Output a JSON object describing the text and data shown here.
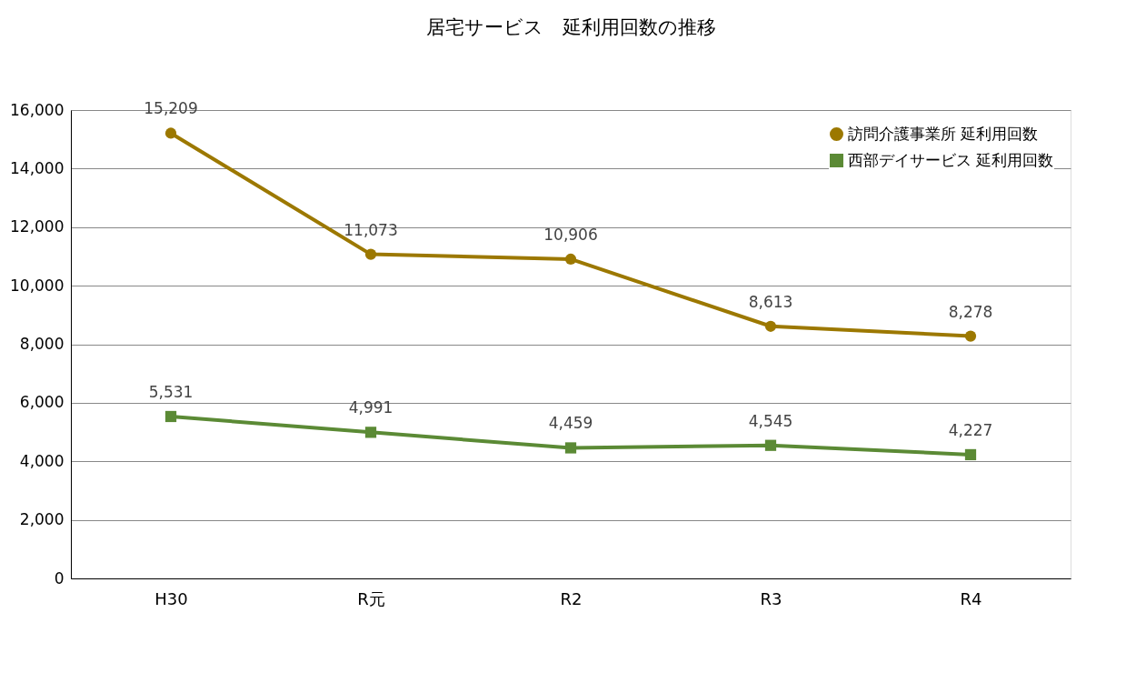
{
  "chart_data": {
    "type": "line",
    "title": "居宅サービス　延利用回数の推移",
    "categories": [
      "H30",
      "R元",
      "R2",
      "R3",
      "R4"
    ],
    "series": [
      {
        "name": "訪問介護事業所 延利用回数",
        "color": "#9c7800",
        "marker": "circle",
        "values": [
          15209,
          11073,
          10906,
          8613,
          8278
        ],
        "value_labels": [
          "15,209",
          "11,073",
          "10,906",
          "8,613",
          "8,278"
        ]
      },
      {
        "name": "西部デイサービス 延利用回数",
        "color": "#5b8a35",
        "marker": "square",
        "values": [
          5531,
          4991,
          4459,
          4545,
          4227
        ],
        "value_labels": [
          "5,531",
          "4,991",
          "4,459",
          "4,545",
          "4,227"
        ]
      }
    ],
    "ylim": [
      0,
      16000
    ],
    "yticks": [
      0,
      {
        "value": 2000,
        "label": "2,000"
      },
      {
        "value": 4000,
        "label": "4,000"
      },
      {
        "value": 6000,
        "label": "6,000"
      },
      {
        "value": 8000,
        "label": "8,000"
      },
      {
        "value": 10000,
        "label": "10,000"
      },
      {
        "value": 12000,
        "label": "12,000"
      },
      {
        "value": 14000,
        "label": "14,000"
      },
      {
        "value": 16000,
        "label": "16,000"
      }
    ],
    "grid": "y",
    "legend": "top right",
    "line_style": "solid"
  }
}
